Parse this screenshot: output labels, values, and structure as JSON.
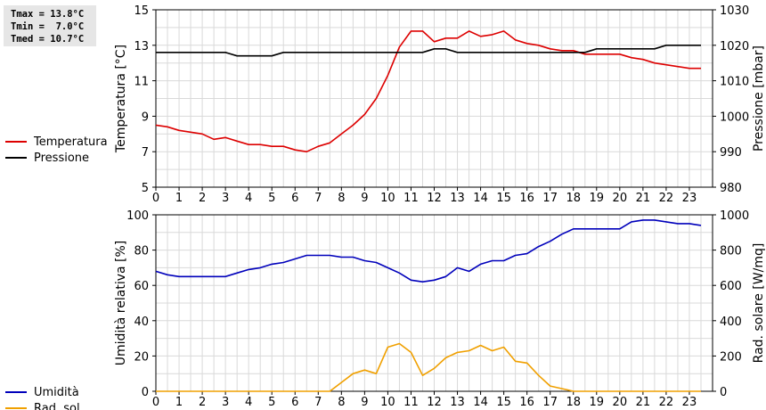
{
  "stats": {
    "tmax": "Tmax = 13.8°C",
    "tmin": "Tmin =  7.0°C",
    "tmed": "Tmed = 10.7°C"
  },
  "colors": {
    "temperature": "#dd0000",
    "pressure": "#000000",
    "humidity": "#0000bb",
    "radiation": "#f0a000",
    "grid": "#d9d9d9"
  },
  "chart_data": [
    {
      "type": "line",
      "xlim": [
        0,
        24
      ],
      "xticks": [
        0,
        1,
        2,
        3,
        4,
        5,
        6,
        7,
        8,
        9,
        10,
        11,
        12,
        13,
        14,
        15,
        16,
        17,
        18,
        19,
        20,
        21,
        22,
        23
      ],
      "ylabel_left": "Temperatura [°C]",
      "ylabel_right": "Pressione [mbar]",
      "ylim_left": [
        5,
        15
      ],
      "yticks_left": [
        5,
        7,
        9,
        11,
        13,
        15
      ],
      "ylim_right": [
        980,
        1030
      ],
      "yticks_right": [
        980,
        990,
        1000,
        1010,
        1020,
        1030
      ],
      "grid": true,
      "legend": "left",
      "series": [
        {
          "name": "Temperatura",
          "axis": "left",
          "color": "#dd0000",
          "x": [
            0,
            0.5,
            1,
            1.5,
            2,
            2.5,
            3,
            3.5,
            4,
            4.5,
            5,
            5.5,
            6,
            6.5,
            7,
            7.5,
            8,
            8.5,
            9,
            9.5,
            10,
            10.5,
            11,
            11.5,
            12,
            12.5,
            13,
            13.5,
            14,
            14.5,
            15,
            15.5,
            16,
            16.5,
            17,
            17.5,
            18,
            18.5,
            19,
            19.5,
            20,
            20.5,
            21,
            21.5,
            22,
            22.5,
            23,
            23.5
          ],
          "y": [
            8.5,
            8.4,
            8.2,
            8.1,
            8.0,
            7.7,
            7.8,
            7.6,
            7.4,
            7.4,
            7.3,
            7.3,
            7.1,
            7.0,
            7.3,
            7.5,
            8.0,
            8.5,
            9.1,
            10.0,
            11.3,
            12.9,
            13.8,
            13.8,
            13.2,
            13.4,
            13.4,
            13.8,
            13.5,
            13.6,
            13.8,
            13.3,
            13.1,
            13.0,
            12.8,
            12.7,
            12.7,
            12.5,
            12.5,
            12.5,
            12.5,
            12.3,
            12.2,
            12.0,
            11.9,
            11.8,
            11.7,
            11.7
          ]
        },
        {
          "name": "Pressione",
          "axis": "right",
          "color": "#000000",
          "x": [
            0,
            0.5,
            1,
            1.5,
            2,
            2.5,
            3,
            3.5,
            4,
            4.5,
            5,
            5.5,
            6,
            6.5,
            7,
            7.5,
            8,
            8.5,
            9,
            9.5,
            10,
            10.5,
            11,
            11.5,
            12,
            12.5,
            13,
            13.5,
            14,
            14.5,
            15,
            15.5,
            16,
            16.5,
            17,
            17.5,
            18,
            18.5,
            19,
            19.5,
            20,
            20.5,
            21,
            21.5,
            22,
            22.5,
            23,
            23.5
          ],
          "y": [
            1018,
            1018,
            1018,
            1018,
            1018,
            1018,
            1018,
            1017,
            1017,
            1017,
            1017,
            1018,
            1018,
            1018,
            1018,
            1018,
            1018,
            1018,
            1018,
            1018,
            1018,
            1018,
            1018,
            1018,
            1019,
            1019,
            1018,
            1018,
            1018,
            1018,
            1018,
            1018,
            1018,
            1018,
            1018,
            1018,
            1018,
            1018,
            1019,
            1019,
            1019,
            1019,
            1019,
            1019,
            1020,
            1020,
            1020,
            1020
          ]
        }
      ]
    },
    {
      "type": "line",
      "xlim": [
        0,
        24
      ],
      "xticks": [
        0,
        1,
        2,
        3,
        4,
        5,
        6,
        7,
        8,
        9,
        10,
        11,
        12,
        13,
        14,
        15,
        16,
        17,
        18,
        19,
        20,
        21,
        22,
        23
      ],
      "ylabel_left": "Umidità relativa [%]",
      "ylabel_right": "Rad. solare [W/mq]",
      "ylim_left": [
        0,
        100
      ],
      "yticks_left": [
        0,
        20,
        40,
        60,
        80,
        100
      ],
      "ylim_right": [
        0,
        1000
      ],
      "yticks_right": [
        0,
        200,
        400,
        600,
        800,
        1000
      ],
      "grid": true,
      "legend": "left",
      "series": [
        {
          "name": "Umidità",
          "axis": "left",
          "color": "#0000bb",
          "x": [
            0,
            0.5,
            1,
            1.5,
            2,
            2.5,
            3,
            3.5,
            4,
            4.5,
            5,
            5.5,
            6,
            6.5,
            7,
            7.5,
            8,
            8.5,
            9,
            9.5,
            10,
            10.5,
            11,
            11.5,
            12,
            12.5,
            13,
            13.5,
            14,
            14.5,
            15,
            15.5,
            16,
            16.5,
            17,
            17.5,
            18,
            18.5,
            19,
            19.5,
            20,
            20.5,
            21,
            21.5,
            22,
            22.5,
            23,
            23.5
          ],
          "y": [
            68,
            66,
            65,
            65,
            65,
            65,
            65,
            67,
            69,
            70,
            72,
            73,
            75,
            77,
            77,
            77,
            76,
            76,
            74,
            73,
            70,
            67,
            63,
            62,
            63,
            65,
            70,
            68,
            72,
            74,
            74,
            77,
            78,
            82,
            85,
            89,
            92,
            92,
            92,
            92,
            92,
            96,
            97,
            97,
            96,
            95,
            95,
            94
          ]
        },
        {
          "name": "Rad. sol.",
          "axis": "right",
          "color": "#f0a000",
          "x": [
            0,
            1,
            2,
            3,
            4,
            5,
            6,
            7,
            7.5,
            8,
            8.5,
            9,
            9.5,
            10,
            10.5,
            11,
            11.5,
            12,
            12.5,
            13,
            13.5,
            14,
            14.5,
            15,
            15.5,
            16,
            16.5,
            17,
            17.5,
            18,
            19,
            20,
            21,
            22,
            23,
            23.5
          ],
          "y": [
            0,
            0,
            0,
            0,
            0,
            0,
            0,
            0,
            0,
            50,
            100,
            120,
            100,
            250,
            270,
            220,
            90,
            130,
            190,
            220,
            230,
            260,
            230,
            250,
            170,
            160,
            90,
            30,
            15,
            0,
            0,
            0,
            0,
            0,
            0,
            0
          ]
        }
      ]
    }
  ]
}
